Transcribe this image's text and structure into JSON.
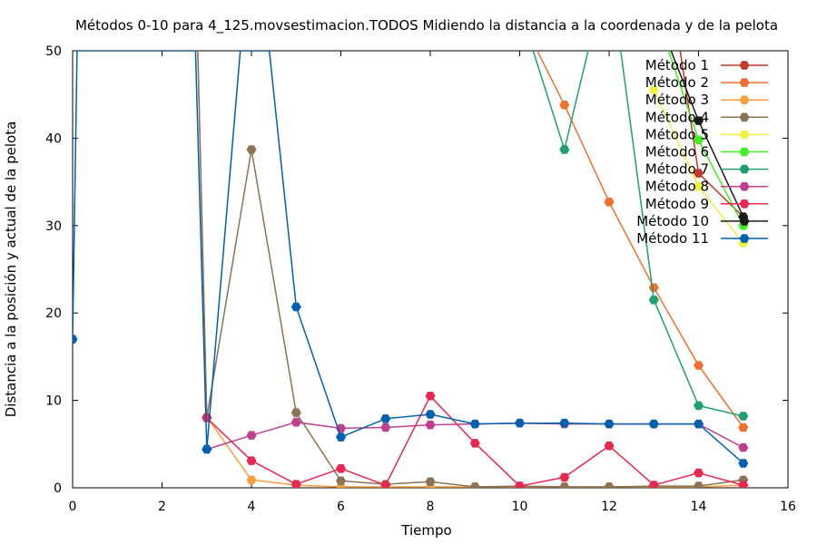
{
  "chart_data": {
    "type": "line",
    "title": "Métodos 0-10 para 4_125.movsestimacion.TODOS Midiendo la distancia a la coordenada y de la pelota",
    "xlabel": "Tiempo",
    "ylabel": "Distancia a la posición y actual de la pelota",
    "xlim": [
      0,
      16
    ],
    "ylim": [
      0,
      50
    ],
    "xticks": [
      0,
      2,
      4,
      6,
      8,
      10,
      12,
      14,
      16
    ],
    "yticks": [
      0,
      10,
      20,
      30,
      40,
      50
    ],
    "grid": false,
    "legend_position": "top-right",
    "series": [
      {
        "name": "Método 1",
        "color": "#c0392b",
        "marker": "circle",
        "x": [
          13,
          14,
          15
        ],
        "y": [
          70,
          36,
          31
        ]
      },
      {
        "name": "Método 2",
        "color": "#f07030",
        "marker": "circle",
        "x": [
          10,
          11,
          12,
          13,
          14,
          15
        ],
        "y": [
          54,
          43.8,
          32.7,
          22.9,
          14.0,
          6.9
        ]
      },
      {
        "name": "Método 3",
        "color": "#f8a040",
        "marker": "circle",
        "x": [
          2.8,
          3,
          4,
          5,
          6,
          7,
          8,
          9,
          10,
          11,
          12,
          13,
          14,
          15
        ],
        "y": [
          50,
          8.1,
          0.9,
          0.3,
          0.1,
          0.1,
          0.1,
          0.1,
          0.1,
          0.1,
          0.1,
          0.1,
          0.1,
          0.3
        ]
      },
      {
        "name": "Método 4",
        "color": "#8b7355",
        "marker": "circle",
        "x": [
          2.8,
          3,
          4,
          5,
          6,
          7,
          8,
          9,
          10,
          11,
          12,
          13,
          14,
          15
        ],
        "y": [
          50,
          8.0,
          38.7,
          8.6,
          0.8,
          0.4,
          0.7,
          0.1,
          0.2,
          0.1,
          0.1,
          0.2,
          0.2,
          0.9
        ]
      },
      {
        "name": "Método 5",
        "color": "#f0f040",
        "marker": "circle",
        "x": [
          13,
          14,
          15
        ],
        "y": [
          45.5,
          34.5,
          28.0
        ]
      },
      {
        "name": "Método 6",
        "color": "#40f020",
        "marker": "circle",
        "x": [
          13,
          14,
          15
        ],
        "y": [
          55,
          39.8,
          30.0
        ]
      },
      {
        "name": "Método 7",
        "color": "#20a070",
        "marker": "circle",
        "x": [
          10.3,
          11,
          12,
          13,
          14,
          15
        ],
        "y": [
          50,
          38.7,
          60,
          21.5,
          9.4,
          8.2
        ]
      },
      {
        "name": "Método 8",
        "color": "#c04090",
        "marker": "circle",
        "x": [
          3,
          4,
          5,
          6,
          7,
          8,
          9,
          10,
          11,
          12,
          13,
          14,
          15
        ],
        "y": [
          4.4,
          6.0,
          7.5,
          6.8,
          6.9,
          7.2,
          7.3,
          7.4,
          7.3,
          7.3,
          7.3,
          7.3,
          4.6
        ]
      },
      {
        "name": "Método 9",
        "color": "#e82850",
        "marker": "circle",
        "x": [
          3,
          4,
          5,
          6,
          7,
          8,
          9,
          10,
          11,
          12,
          13,
          14,
          15
        ],
        "y": [
          8.0,
          3.1,
          0.4,
          2.2,
          0.3,
          10.5,
          5.1,
          0.2,
          1.2,
          4.8,
          0.3,
          1.7,
          0.3
        ]
      },
      {
        "name": "Método 10",
        "color": "#1a1a1a",
        "marker": "circle",
        "x": [
          13,
          14,
          15
        ],
        "y": [
          55,
          42.0,
          31.0
        ]
      },
      {
        "name": "Método 11",
        "color": "#0060b0",
        "marker": "circle",
        "x": [
          0,
          0.1,
          2.75,
          3,
          3.75,
          4.4,
          5,
          6,
          7,
          8,
          9,
          10,
          11,
          12,
          13,
          14,
          15
        ],
        "y": [
          17.0,
          50,
          50,
          4.4,
          50,
          50,
          20.7,
          5.8,
          7.9,
          8.4,
          7.3,
          7.4,
          7.4,
          7.3,
          7.3,
          7.3,
          2.8
        ]
      }
    ]
  }
}
